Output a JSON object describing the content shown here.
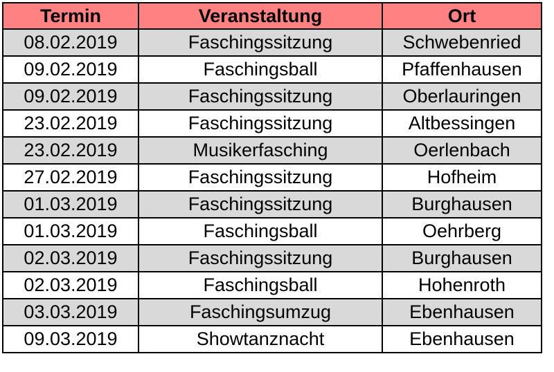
{
  "colors": {
    "header_bg": "#ff8181",
    "row_shaded": "#d9d9d9",
    "row_plain": "#ffffff",
    "border": "#000000"
  },
  "table": {
    "headers": [
      "Termin",
      "Veranstaltung",
      "Ort"
    ],
    "rows": [
      [
        "08.02.2019",
        "Faschingssitzung",
        "Schwebenried"
      ],
      [
        "09.02.2019",
        "Faschingsball",
        "Pfaffenhausen"
      ],
      [
        "09.02.2019",
        "Faschingssitzung",
        "Oberlauringen"
      ],
      [
        "23.02.2019",
        "Faschingssitzung",
        "Altbessingen"
      ],
      [
        "23.02.2019",
        "Musikerfasching",
        "Oerlenbach"
      ],
      [
        "27.02.2019",
        "Faschingssitzung",
        "Hofheim"
      ],
      [
        "01.03.2019",
        "Faschingssitzung",
        "Burghausen"
      ],
      [
        "01.03.2019",
        "Faschingsball",
        "Oehrberg"
      ],
      [
        "02.03.2019",
        "Faschingssitzung",
        "Burghausen"
      ],
      [
        "02.03.2019",
        "Faschingsball",
        "Hohenroth"
      ],
      [
        "03.03.2019",
        "Faschingsumzug",
        "Ebenhausen"
      ],
      [
        "09.03.2019",
        "Showtanznacht",
        "Ebenhausen"
      ]
    ]
  }
}
